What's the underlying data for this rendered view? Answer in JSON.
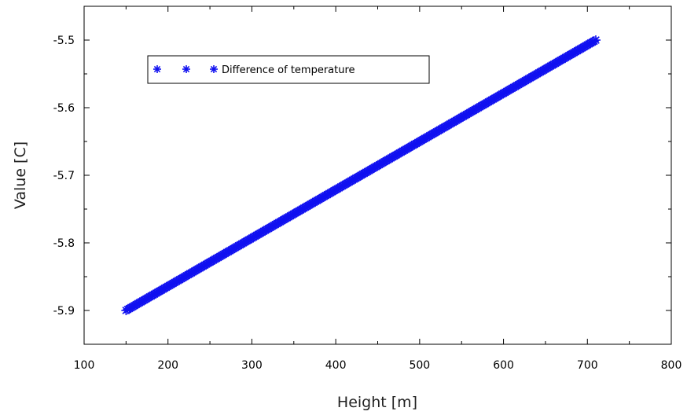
{
  "chart_data": {
    "type": "scatter",
    "title": "",
    "xlabel": "Height [m]",
    "ylabel": "Value [C]",
    "xlim": [
      100,
      800
    ],
    "ylim": [
      -5.95,
      -5.45
    ],
    "x_ticks": [
      100,
      200,
      300,
      400,
      500,
      600,
      700,
      800
    ],
    "x_tick_labels": [
      "100",
      "200",
      "300",
      "400",
      "500",
      "600",
      "700",
      "800"
    ],
    "y_ticks": [
      -5.9,
      -5.8,
      -5.7,
      -5.6,
      -5.5
    ],
    "y_tick_labels": [
      "-5.9",
      "-5.8",
      "-5.7",
      "-5.6",
      "-5.5"
    ],
    "grid": false,
    "legend_position": "top-left",
    "series": [
      {
        "name": "Difference of temperature",
        "marker": "asterisk",
        "color": "#1010f0",
        "x_start": 150,
        "x_end": 710,
        "x_step": 2,
        "slope": 0.000714286,
        "intercept": -6.007143
      }
    ]
  }
}
